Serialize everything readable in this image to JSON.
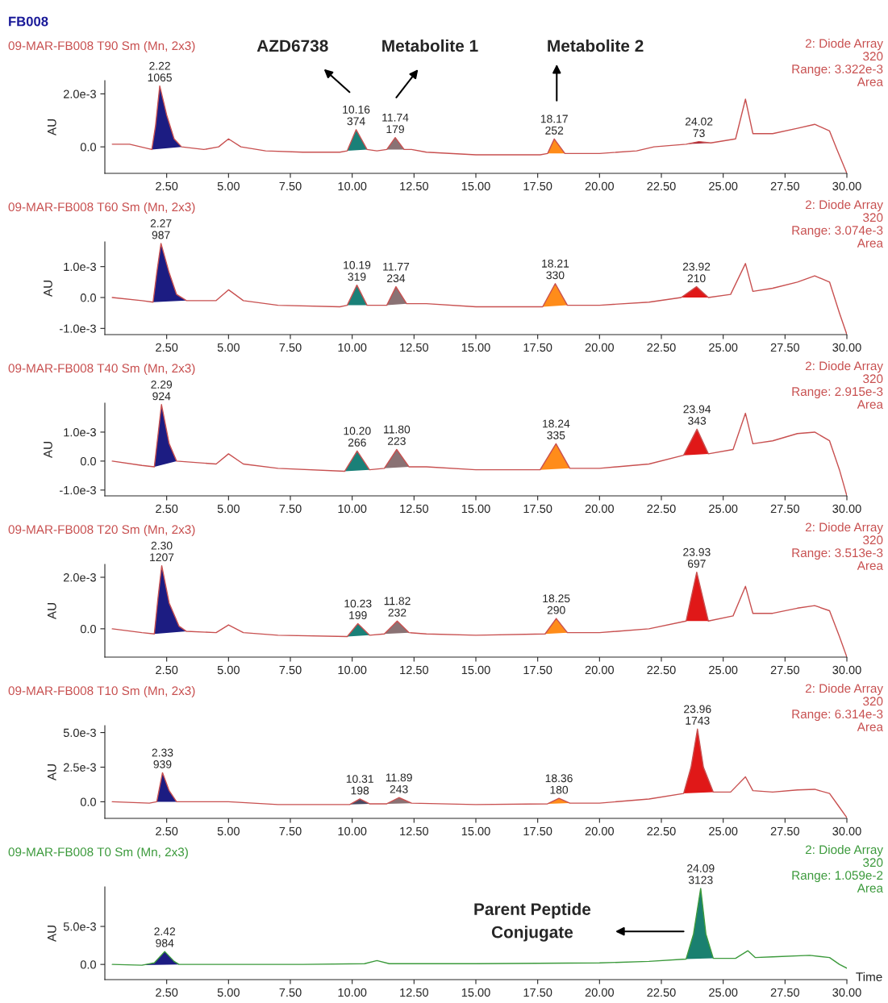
{
  "chart_data": [
    {
      "type": "line",
      "title": "FB008",
      "subtitle": "09-MAR-FB008 T90 Sm (Mn, 2x3)",
      "ylabel": "AU",
      "xlim": [
        0,
        30
      ],
      "xticks": [
        {
          "value": 2.5,
          "label": "2.50"
        },
        {
          "value": 5,
          "label": "5.00"
        },
        {
          "value": 7.5,
          "label": "7.50"
        },
        {
          "value": 10,
          "label": "10.00"
        },
        {
          "value": 12.5,
          "label": "12.50"
        },
        {
          "value": 15,
          "label": "15.00"
        },
        {
          "value": 17.5,
          "label": "17.50"
        },
        {
          "value": 20,
          "label": "20.00"
        },
        {
          "value": 22.5,
          "label": "22.50"
        },
        {
          "value": 25,
          "label": "25.00"
        },
        {
          "value": 27.5,
          "label": "27.50"
        },
        {
          "value": 30,
          "label": "30.00"
        }
      ],
      "ylim": [
        -0.001,
        0.0025
      ],
      "yticks": [
        {
          "value": 0,
          "label": "0.0"
        },
        {
          "value": 0.002,
          "label": "2.0e-3"
        }
      ],
      "grid": false,
      "legend": false,
      "series": [
        {
          "color": "#c85050",
          "x": [
            0.3,
            1.0,
            1.9,
            2.05,
            2.22,
            2.5,
            2.8,
            3.1,
            4.0,
            4.6,
            5.0,
            5.5,
            6.5,
            8.0,
            9.5,
            9.8,
            10.16,
            10.6,
            11.0,
            11.4,
            11.74,
            12.1,
            12.4,
            13,
            15,
            17.6,
            17.9,
            18.17,
            18.6,
            20,
            21.5,
            22.2,
            23.5,
            24.02,
            24.5,
            25.5,
            25.9,
            26.2,
            27,
            28.0,
            28.7,
            29.3,
            29.6,
            30
          ],
          "values": [
            0.0001,
            0.0001,
            -0.0001,
            0.0008,
            0.0023,
            0.0012,
            0.0003,
            0.0,
            -0.0001,
            0.0,
            0.0003,
            0.0,
            -0.00015,
            -0.0002,
            -0.0002,
            -0.00015,
            0.00065,
            -0.0001,
            -0.00015,
            -0.0001,
            0.00035,
            -0.0001,
            -0.0001,
            -0.0002,
            -0.0003,
            -0.0003,
            -0.00025,
            0.0003,
            -0.00025,
            -0.00025,
            -0.00015,
            0.0,
            0.0001,
            0.0002,
            0.00015,
            0.0003,
            0.0018,
            0.0005,
            0.0005,
            0.0007,
            0.00085,
            0.0006,
            -0.0001,
            -0.001
          ]
        },
        {
          "type": "area",
          "color": "#1c1c82",
          "x": [
            1.9,
            2.05,
            2.22,
            2.5,
            2.8,
            3.1
          ],
          "values": [
            -0.0001,
            0.0008,
            0.0023,
            0.0012,
            0.0003,
            0.0
          ]
        },
        {
          "type": "area",
          "color": "#1a8078",
          "x": [
            9.8,
            10.16,
            10.6
          ],
          "values": [
            -0.00015,
            0.00065,
            -0.0001
          ]
        },
        {
          "type": "area",
          "color": "#8a7274",
          "x": [
            11.4,
            11.74,
            12.1
          ],
          "values": [
            -0.0001,
            0.00035,
            -0.0001
          ]
        },
        {
          "type": "area",
          "color": "#ff8c1a",
          "x": [
            17.9,
            18.17,
            18.6
          ],
          "values": [
            -0.00025,
            0.0003,
            -0.00025
          ]
        },
        {
          "type": "area",
          "color": "#a01828",
          "x": [
            23.5,
            24.02,
            24.5
          ],
          "values": [
            0.0001,
            0.0002,
            0.00015
          ]
        }
      ],
      "annotations": [
        "2: Diode Array\n320\nRange: 3.322e-3\nArea",
        {
          "text": "2.22\n1065",
          "x": 2.22,
          "y": 0.0023
        },
        {
          "text": "10.16\n374",
          "x": 10.16,
          "y": 0.00065
        },
        {
          "text": "11.74\n179",
          "x": 11.74,
          "y": 0.00035
        },
        {
          "text": "18.17\n252",
          "x": 18.17,
          "y": 0.0003
        },
        {
          "text": "24.02\n73",
          "x": 24.02,
          "y": 0.0002
        },
        "AZD6738",
        "Metabolite 1",
        "Metabolite 2"
      ]
    },
    {
      "type": "line",
      "subtitle": "09-MAR-FB008 T60 Sm (Mn, 2x3)",
      "ylabel": "AU",
      "xlim": [
        0,
        30
      ],
      "xticks": [
        {
          "value": 2.5,
          "label": "2.50"
        },
        {
          "value": 5,
          "label": "5.00"
        },
        {
          "value": 7.5,
          "label": "7.50"
        },
        {
          "value": 10,
          "label": "10.00"
        },
        {
          "value": 12.5,
          "label": "12.50"
        },
        {
          "value": 15,
          "label": "15.00"
        },
        {
          "value": 17.5,
          "label": "17.50"
        },
        {
          "value": 20,
          "label": "20.00"
        },
        {
          "value": 22.5,
          "label": "22.50"
        },
        {
          "value": 25,
          "label": "25.00"
        },
        {
          "value": 27.5,
          "label": "27.50"
        },
        {
          "value": 30,
          "label": "30.00"
        }
      ],
      "ylim": [
        -0.0012,
        0.0018
      ],
      "yticks": [
        {
          "value": -0.001,
          "label": "-1.0e-3"
        },
        {
          "value": 0,
          "label": "0.0"
        },
        {
          "value": 0.001,
          "label": "1.0e-3"
        }
      ],
      "grid": false,
      "legend": false,
      "series": [
        {
          "color": "#c85050",
          "x": [
            0.3,
            1.5,
            1.95,
            2.1,
            2.27,
            2.6,
            2.9,
            3.3,
            4.5,
            5.0,
            5.6,
            7,
            9.5,
            9.8,
            10.19,
            10.6,
            11.4,
            11.77,
            12.2,
            13,
            15,
            17.7,
            18.21,
            18.7,
            20,
            22,
            23.3,
            23.92,
            24.4,
            25.3,
            25.9,
            26.2,
            27,
            28,
            28.7,
            29.3,
            29.7,
            30
          ],
          "values": [
            0.0,
            -0.0001,
            -0.00015,
            0.0008,
            0.00175,
            0.0008,
            0.0001,
            -0.0001,
            -0.0001,
            0.00025,
            -0.0001,
            -0.00025,
            -0.0003,
            -0.00025,
            0.0004,
            -0.00025,
            -0.00025,
            0.00035,
            -0.0002,
            -0.0002,
            -0.0003,
            -0.0003,
            0.00045,
            -0.00025,
            -0.00025,
            -0.00015,
            0.0,
            0.00035,
            0.0,
            0.0001,
            0.0011,
            0.0002,
            0.0003,
            0.0005,
            0.0007,
            0.0005,
            -0.0005,
            -0.0012
          ]
        },
        {
          "type": "area",
          "color": "#1c1c82",
          "x": [
            1.95,
            2.1,
            2.27,
            2.6,
            2.9,
            3.3
          ],
          "values": [
            -0.00015,
            0.0008,
            0.00175,
            0.0008,
            0.0001,
            -0.0001
          ]
        },
        {
          "type": "area",
          "color": "#1a8078",
          "x": [
            9.8,
            10.19,
            10.6
          ],
          "values": [
            -0.00025,
            0.0004,
            -0.00025
          ]
        },
        {
          "type": "area",
          "color": "#8a7274",
          "x": [
            11.4,
            11.77,
            12.2
          ],
          "values": [
            -0.00025,
            0.00035,
            -0.0002
          ]
        },
        {
          "type": "area",
          "color": "#ff8c1a",
          "x": [
            17.7,
            18.21,
            18.7
          ],
          "values": [
            -0.0003,
            0.00045,
            -0.00025
          ]
        },
        {
          "type": "area",
          "color": "#e01818",
          "x": [
            23.3,
            23.92,
            24.4
          ],
          "values": [
            0.0,
            0.00035,
            0.0
          ]
        }
      ],
      "annotations": [
        "2: Diode Array\n320\nRange: 3.074e-3\nArea",
        {
          "text": "2.27\n987",
          "x": 2.27,
          "y": 0.00175
        },
        {
          "text": "10.19\n319",
          "x": 10.19,
          "y": 0.0004
        },
        {
          "text": "11.77\n234",
          "x": 11.77,
          "y": 0.00035
        },
        {
          "text": "18.21\n330",
          "x": 18.21,
          "y": 0.00045
        },
        {
          "text": "23.92\n210",
          "x": 23.92,
          "y": 0.00035
        }
      ]
    },
    {
      "type": "line",
      "subtitle": "09-MAR-FB008 T40 Sm (Mn, 2x3)",
      "ylabel": "AU",
      "xlim": [
        0,
        30
      ],
      "xticks": [
        {
          "value": 2.5,
          "label": "2.50"
        },
        {
          "value": 5,
          "label": "5.00"
        },
        {
          "value": 7.5,
          "label": "7.50"
        },
        {
          "value": 10,
          "label": "10.00"
        },
        {
          "value": 12.5,
          "label": "12.50"
        },
        {
          "value": 15,
          "label": "15.00"
        },
        {
          "value": 17.5,
          "label": "17.50"
        },
        {
          "value": 20,
          "label": "20.00"
        },
        {
          "value": 22.5,
          "label": "22.50"
        },
        {
          "value": 25,
          "label": "25.00"
        },
        {
          "value": 27.5,
          "label": "27.50"
        },
        {
          "value": 30,
          "label": "30.00"
        }
      ],
      "ylim": [
        -0.0012,
        0.002
      ],
      "yticks": [
        {
          "value": -0.001,
          "label": "-1.0e-3"
        },
        {
          "value": 0,
          "label": "0.0"
        },
        {
          "value": 0.001,
          "label": "1.0e-3"
        }
      ],
      "grid": false,
      "legend": false,
      "series": [
        {
          "color": "#c85050",
          "x": [
            0.3,
            1.5,
            2.0,
            2.15,
            2.29,
            2.6,
            2.9,
            4.5,
            5.0,
            5.6,
            7,
            9.7,
            10.2,
            10.7,
            11.3,
            11.8,
            12.3,
            13,
            15,
            17.6,
            18.24,
            18.8,
            20,
            22,
            23.4,
            23.94,
            24.4,
            25.4,
            25.9,
            26.2,
            27,
            28.0,
            28.7,
            29.3,
            29.7,
            30
          ],
          "values": [
            0.0,
            -0.00015,
            -0.0002,
            0.0009,
            0.00195,
            0.0006,
            0.0,
            -0.0001,
            0.00025,
            -0.0001,
            -0.00025,
            -0.00035,
            0.00035,
            -0.0003,
            -0.00025,
            0.0004,
            -0.0002,
            -0.0002,
            -0.0003,
            -0.0003,
            0.0006,
            -0.00025,
            -0.00025,
            -0.0001,
            0.0002,
            0.0011,
            0.00025,
            0.0004,
            0.00165,
            0.0006,
            0.0007,
            0.00095,
            0.001,
            0.0007,
            -0.0003,
            -0.0012
          ]
        },
        {
          "type": "area",
          "color": "#1c1c82",
          "x": [
            2.0,
            2.15,
            2.29,
            2.6,
            2.9
          ],
          "values": [
            -0.0002,
            0.0009,
            0.00195,
            0.0006,
            0.0
          ]
        },
        {
          "type": "area",
          "color": "#1a8078",
          "x": [
            9.7,
            10.2,
            10.7
          ],
          "values": [
            -0.00035,
            0.00035,
            -0.0003
          ]
        },
        {
          "type": "area",
          "color": "#8a7274",
          "x": [
            11.3,
            11.8,
            12.3
          ],
          "values": [
            -0.00025,
            0.0004,
            -0.0002
          ]
        },
        {
          "type": "area",
          "color": "#ff8c1a",
          "x": [
            17.6,
            18.24,
            18.8
          ],
          "values": [
            -0.0003,
            0.0006,
            -0.00025
          ]
        },
        {
          "type": "area",
          "color": "#e01818",
          "x": [
            23.4,
            23.94,
            24.4
          ],
          "values": [
            0.0002,
            0.0011,
            0.00025
          ]
        }
      ],
      "annotations": [
        "2: Diode Array\n320\nRange: 2.915e-3\nArea",
        {
          "text": "2.29\n924",
          "x": 2.29,
          "y": 0.00195
        },
        {
          "text": "10.20\n266",
          "x": 10.2,
          "y": 0.00035
        },
        {
          "text": "11.80\n223",
          "x": 11.8,
          "y": 0.0004
        },
        {
          "text": "18.24\n335",
          "x": 18.24,
          "y": 0.0006
        },
        {
          "text": "23.94\n343",
          "x": 23.94,
          "y": 0.0011
        }
      ]
    },
    {
      "type": "line",
      "subtitle": "09-MAR-FB008 T20 Sm (Mn, 2x3)",
      "ylabel": "AU",
      "xlim": [
        0,
        30
      ],
      "xticks": [
        {
          "value": 2.5,
          "label": "2.50"
        },
        {
          "value": 5,
          "label": "5.00"
        },
        {
          "value": 7.5,
          "label": "7.50"
        },
        {
          "value": 10,
          "label": "10.00"
        },
        {
          "value": 12.5,
          "label": "12.50"
        },
        {
          "value": 15,
          "label": "15.00"
        },
        {
          "value": 17.5,
          "label": "17.50"
        },
        {
          "value": 20,
          "label": "20.00"
        },
        {
          "value": 22.5,
          "label": "22.50"
        },
        {
          "value": 25,
          "label": "25.00"
        },
        {
          "value": 27.5,
          "label": "27.50"
        },
        {
          "value": 30,
          "label": "30.00"
        }
      ],
      "ylim": [
        -0.0011,
        0.0025
      ],
      "yticks": [
        {
          "value": 0,
          "label": "0.0"
        },
        {
          "value": 0.002,
          "label": "2.0e-3"
        }
      ],
      "grid": false,
      "legend": false,
      "series": [
        {
          "color": "#c85050",
          "x": [
            0.3,
            1.5,
            2.0,
            2.15,
            2.3,
            2.6,
            3.0,
            3.3,
            4.5,
            5.0,
            5.6,
            7,
            9.8,
            10.23,
            10.7,
            11.3,
            11.82,
            12.3,
            13,
            15,
            17.8,
            18.25,
            18.7,
            20,
            22,
            23.5,
            23.93,
            24.4,
            25.4,
            25.9,
            26.2,
            27,
            28,
            28.7,
            29.3,
            29.7,
            30
          ],
          "values": [
            0.0,
            -0.00015,
            -0.0002,
            0.0012,
            0.00245,
            0.001,
            0.0001,
            -0.0001,
            -0.00015,
            0.00015,
            -0.00015,
            -0.00025,
            -0.0003,
            0.0002,
            -0.00025,
            -0.0002,
            0.0003,
            -0.00015,
            -0.0002,
            -0.00025,
            -0.0002,
            0.0004,
            -0.00015,
            -0.00015,
            0.0,
            0.0003,
            0.0022,
            0.0003,
            0.0005,
            0.00165,
            0.0006,
            0.0006,
            0.0008,
            0.0009,
            0.0007,
            -0.0003,
            -0.0011
          ]
        },
        {
          "type": "area",
          "color": "#1c1c82",
          "x": [
            2.0,
            2.15,
            2.3,
            2.6,
            3.0,
            3.3
          ],
          "values": [
            -0.0002,
            0.0012,
            0.00245,
            0.001,
            0.0001,
            -0.0001
          ]
        },
        {
          "type": "area",
          "color": "#1a8078",
          "x": [
            9.8,
            10.23,
            10.7
          ],
          "values": [
            -0.0003,
            0.0002,
            -0.00025
          ]
        },
        {
          "type": "area",
          "color": "#8a7274",
          "x": [
            11.3,
            11.82,
            12.3
          ],
          "values": [
            -0.0002,
            0.0003,
            -0.00015
          ]
        },
        {
          "type": "area",
          "color": "#ff8c1a",
          "x": [
            17.8,
            18.25,
            18.7
          ],
          "values": [
            -0.0002,
            0.0004,
            -0.00015
          ]
        },
        {
          "type": "area",
          "color": "#e01818",
          "x": [
            23.5,
            23.93,
            24.4
          ],
          "values": [
            0.0003,
            0.0022,
            0.0003
          ]
        }
      ],
      "annotations": [
        "2: Diode Array\n320\nRange: 3.513e-3\nArea",
        {
          "text": "2.30\n1207",
          "x": 2.3,
          "y": 0.00245
        },
        {
          "text": "10.23\n199",
          "x": 10.23,
          "y": 0.0002
        },
        {
          "text": "11.82\n232",
          "x": 11.82,
          "y": 0.0003
        },
        {
          "text": "18.25\n290",
          "x": 18.25,
          "y": 0.0004
        },
        {
          "text": "23.93\n697",
          "x": 23.93,
          "y": 0.0022
        }
      ]
    },
    {
      "type": "line",
      "subtitle": "09-MAR-FB008 T10 Sm (Mn, 2x3)",
      "ylabel": "AU",
      "xlim": [
        0,
        30
      ],
      "xticks": [
        {
          "value": 2.5,
          "label": "2.50"
        },
        {
          "value": 5,
          "label": "5.00"
        },
        {
          "value": 7.5,
          "label": "7.50"
        },
        {
          "value": 10,
          "label": "10.00"
        },
        {
          "value": 12.5,
          "label": "12.50"
        },
        {
          "value": 15,
          "label": "15.00"
        },
        {
          "value": 17.5,
          "label": "17.50"
        },
        {
          "value": 20,
          "label": "20.00"
        },
        {
          "value": 22.5,
          "label": "22.50"
        },
        {
          "value": 25,
          "label": "25.00"
        },
        {
          "value": 27.5,
          "label": "27.50"
        },
        {
          "value": 30,
          "label": "30.00"
        }
      ],
      "ylim": [
        -0.0012,
        0.0055
      ],
      "yticks": [
        {
          "value": 0,
          "label": "0.0"
        },
        {
          "value": 0.0025,
          "label": "2.5e-3"
        },
        {
          "value": 0.005,
          "label": "5.0e-3"
        }
      ],
      "grid": false,
      "legend": false,
      "series": [
        {
          "color": "#c85050",
          "x": [
            0.3,
            1.8,
            2.1,
            2.33,
            2.6,
            2.9,
            5,
            7,
            9.9,
            10.31,
            10.7,
            11.4,
            11.89,
            12.4,
            15,
            17.9,
            18.36,
            18.8,
            20,
            22,
            23.4,
            23.7,
            23.96,
            24.2,
            24.6,
            25.3,
            25.9,
            26.2,
            27,
            28,
            28.7,
            29.3,
            29.7,
            30
          ],
          "values": [
            0.0,
            -0.0001,
            0.0,
            0.0021,
            0.0008,
            0.0,
            0.0,
            -0.0002,
            -0.0002,
            0.0002,
            -0.00015,
            -0.00015,
            0.0003,
            -0.0001,
            -0.0002,
            -0.00015,
            0.00025,
            -0.0001,
            -0.0001,
            0.0002,
            0.0006,
            0.0025,
            0.00525,
            0.0025,
            0.0007,
            0.0007,
            0.0018,
            0.0008,
            0.0007,
            0.00085,
            0.0009,
            0.0006,
            -0.0004,
            -0.00115
          ]
        },
        {
          "type": "area",
          "color": "#1c1c82",
          "x": [
            2.1,
            2.33,
            2.6,
            2.9
          ],
          "values": [
            0.0,
            0.0021,
            0.0008,
            0.0
          ]
        },
        {
          "type": "area",
          "color": "#4a4a62",
          "x": [
            9.9,
            10.31,
            10.7
          ],
          "values": [
            -0.0002,
            0.0002,
            -0.00015
          ]
        },
        {
          "type": "area",
          "color": "#8a7274",
          "x": [
            11.4,
            11.89,
            12.4
          ],
          "values": [
            -0.00015,
            0.0003,
            -0.0001
          ]
        },
        {
          "type": "area",
          "color": "#ff8c1a",
          "x": [
            17.9,
            18.36,
            18.8
          ],
          "values": [
            -0.00015,
            0.00025,
            -0.0001
          ]
        },
        {
          "type": "area",
          "color": "#e01818",
          "x": [
            23.4,
            23.7,
            23.96,
            24.2,
            24.6
          ],
          "values": [
            0.0006,
            0.0025,
            0.00525,
            0.0025,
            0.0007
          ]
        }
      ],
      "annotations": [
        "2: Diode Array\n320\nRange: 6.314e-3\nArea",
        {
          "text": "2.33\n939",
          "x": 2.33,
          "y": 0.0021
        },
        {
          "text": "10.31\n198",
          "x": 10.31,
          "y": 0.0002
        },
        {
          "text": "11.89\n243",
          "x": 11.89,
          "y": 0.0003
        },
        {
          "text": "18.36\n180",
          "x": 18.36,
          "y": 0.00025
        },
        {
          "text": "23.96\n1743",
          "x": 23.96,
          "y": 0.00525
        }
      ]
    },
    {
      "type": "line",
      "subtitle": "09-MAR-FB008 T0 Sm (Mn, 2x3)",
      "ylabel": "AU",
      "xlabel": "Time",
      "xlim": [
        0,
        30
      ],
      "xticks": [
        {
          "value": 2.5,
          "label": "2.50"
        },
        {
          "value": 5,
          "label": "5.00"
        },
        {
          "value": 7.5,
          "label": "7.50"
        },
        {
          "value": 10,
          "label": "10.00"
        },
        {
          "value": 12.5,
          "label": "12.50"
        },
        {
          "value": 15,
          "label": "15.00"
        },
        {
          "value": 17.5,
          "label": "17.50"
        },
        {
          "value": 20,
          "label": "20.00"
        },
        {
          "value": 22.5,
          "label": "22.50"
        },
        {
          "value": 25,
          "label": "25.00"
        },
        {
          "value": 27.5,
          "label": "27.50"
        },
        {
          "value": 30,
          "label": "30.00"
        }
      ],
      "ylim": [
        -0.002,
        0.0102
      ],
      "yticks": [
        {
          "value": 0,
          "label": "0.0"
        },
        {
          "value": 0.005,
          "label": "5.0e-3"
        }
      ],
      "grid": false,
      "legend": false,
      "series": [
        {
          "color": "#3c9a3c",
          "x": [
            0.3,
            1.5,
            2.0,
            2.42,
            2.8,
            3.0,
            5,
            8,
            10.5,
            11.0,
            11.5,
            15,
            20,
            22,
            23.5,
            23.8,
            24.09,
            24.3,
            24.6,
            25.5,
            26.0,
            26.3,
            27,
            28.5,
            29.3,
            29.7,
            30
          ],
          "values": [
            0.0,
            -0.0001,
            0.0002,
            0.0017,
            0.0004,
            0.0,
            0.0,
            0.0,
            0.0001,
            0.0005,
            0.0001,
            0.0001,
            0.0002,
            0.0004,
            0.0007,
            0.004,
            0.01,
            0.004,
            0.0008,
            0.0008,
            0.0018,
            0.0009,
            0.001,
            0.0012,
            0.0009,
            0.0,
            -0.0005
          ]
        },
        {
          "type": "area",
          "color": "#1c1c82",
          "x": [
            1.5,
            2.0,
            2.42,
            2.8,
            3.0
          ],
          "values": [
            -0.0001,
            0.0002,
            0.0017,
            0.0004,
            0.0
          ]
        },
        {
          "type": "area",
          "color": "#1a8070",
          "x": [
            23.5,
            23.8,
            24.09,
            24.3,
            24.6
          ],
          "values": [
            0.0007,
            0.004,
            0.01,
            0.004,
            0.0008
          ]
        }
      ],
      "annotations": [
        "2: Diode Array\n320\nRange: 1.059e-2\nArea",
        {
          "text": "2.42\n984",
          "x": 2.42,
          "y": 0.0017
        },
        {
          "text": "24.09\n3123",
          "x": 24.09,
          "y": 0.01
        },
        "Parent Peptide\nConjugate"
      ]
    }
  ]
}
